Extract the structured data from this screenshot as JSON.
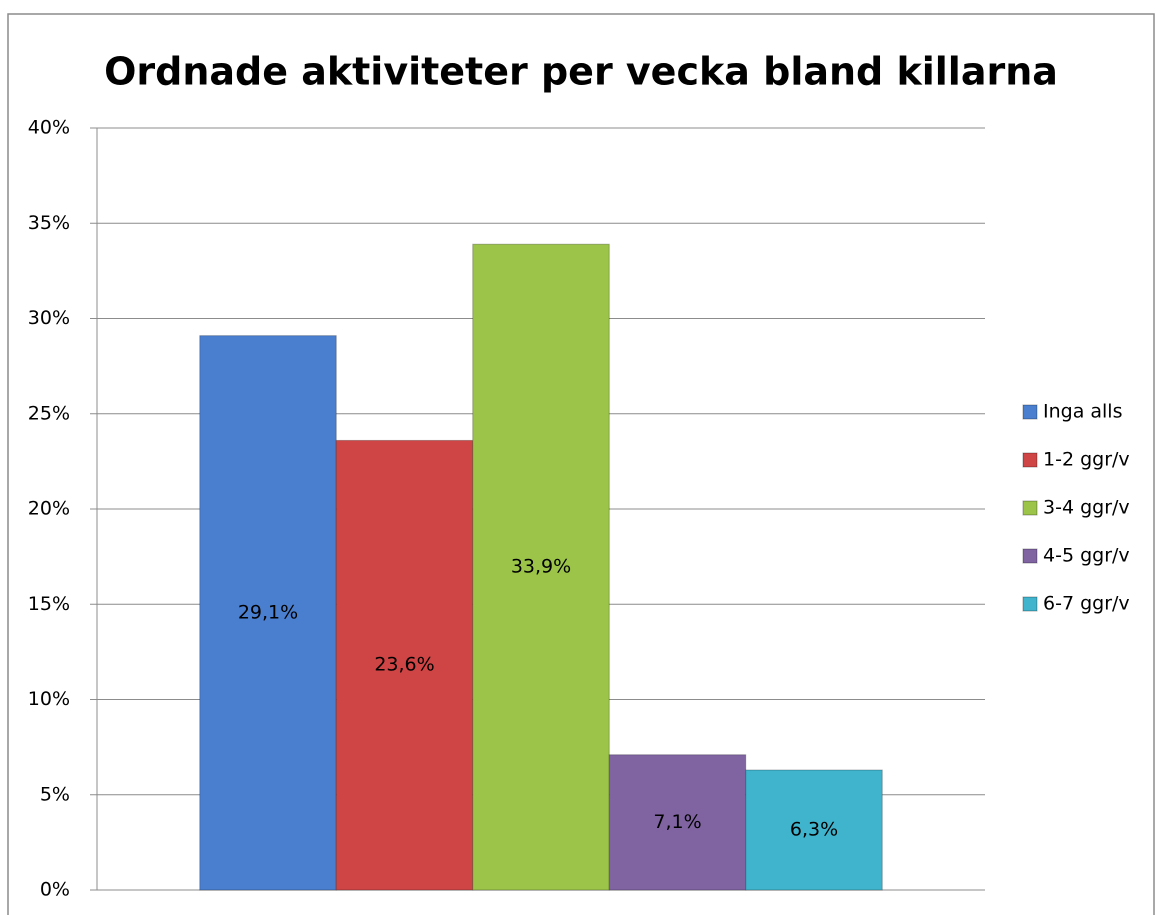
{
  "chart_data": {
    "type": "bar",
    "title": "Ordnade aktiviteter per vecka bland killarna",
    "categories": [
      null
    ],
    "series": [
      {
        "name": "Inga alls",
        "color": "#4a7fcf",
        "values": [
          29.1
        ],
        "value_labels": [
          "29,1%"
        ]
      },
      {
        "name": "1-2 ggr/v",
        "color": "#cf4444",
        "values": [
          23.6
        ],
        "value_labels": [
          "23,6%"
        ]
      },
      {
        "name": "3-4 ggr/v",
        "color": "#9bc449",
        "values": [
          33.9
        ],
        "value_labels": [
          "33,9%"
        ]
      },
      {
        "name": "4-5 ggr/v",
        "color": "#8064a2",
        "values": [
          7.1
        ],
        "value_labels": [
          "7,1%"
        ]
      },
      {
        "name": "6-7 ggr/v",
        "color": "#3fb4cc",
        "values": [
          6.3
        ],
        "value_labels": [
          "6,3%"
        ]
      }
    ],
    "ylim": [
      0,
      40
    ],
    "yticks": [
      {
        "value": 0,
        "label": "0%"
      },
      {
        "value": 5,
        "label": "5%"
      },
      {
        "value": 10,
        "label": "10%"
      },
      {
        "value": 15,
        "label": "15%"
      },
      {
        "value": 20,
        "label": "20%"
      },
      {
        "value": 25,
        "label": "25%"
      },
      {
        "value": 30,
        "label": "30%"
      },
      {
        "value": 35,
        "label": "35%"
      },
      {
        "value": 40,
        "label": "40%"
      }
    ],
    "grid": true,
    "legend": "right"
  }
}
